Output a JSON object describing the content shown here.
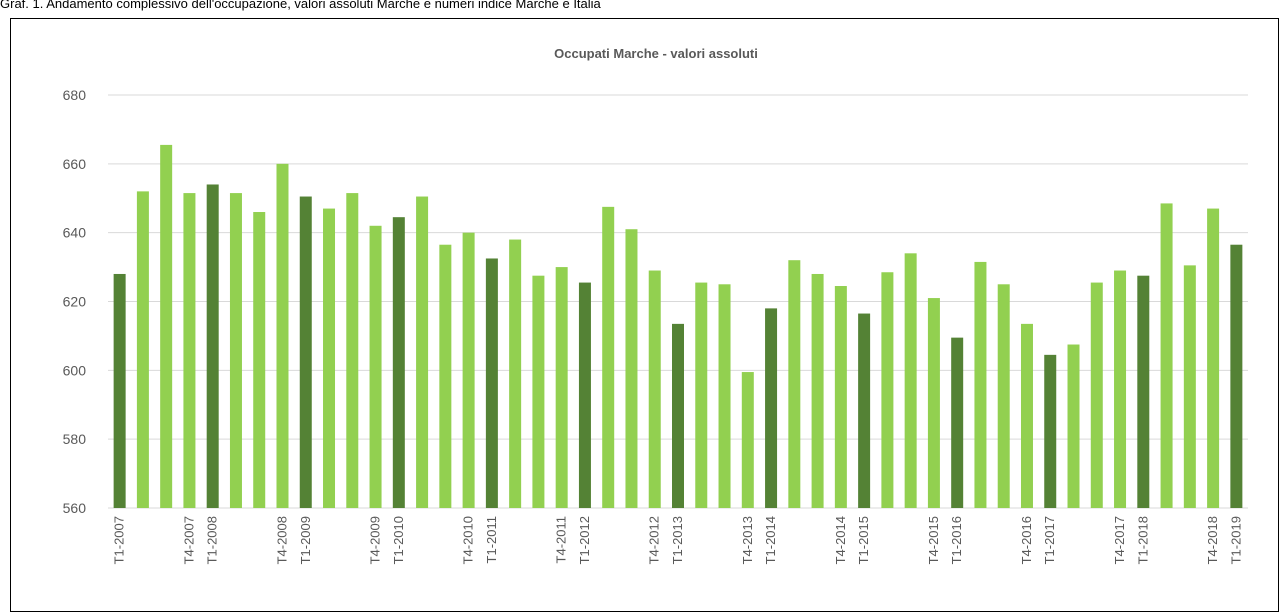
{
  "caption": "Graf. 1. Andamento complessivo dell'occupazione, valori assoluti Marche e numeri indice Marche e Italia",
  "chart_data": {
    "type": "bar",
    "title": "Occupati Marche - valori assoluti",
    "categories": [
      "T1-2007",
      null,
      null,
      "T4-2007",
      "T1-2008",
      null,
      null,
      "T4-2008",
      "T1-2009",
      null,
      null,
      "T4-2009",
      "T1-2010",
      null,
      null,
      "T4-2010",
      "T1-2011",
      null,
      null,
      "T4-2011",
      "T1-2012",
      null,
      null,
      "T4-2012",
      "T1-2013",
      null,
      null,
      "T4-2013",
      "T1-2014",
      null,
      null,
      "T4-2014",
      "T1-2015",
      null,
      null,
      "T4-2015",
      "T1-2016",
      null,
      null,
      "T4-2016",
      "T1-2017",
      null,
      null,
      "T4-2017",
      "T1-2018",
      null,
      null,
      "T4-2018",
      "T1-2019"
    ],
    "values": [
      628,
      652,
      665.5,
      651.5,
      654,
      651.5,
      646,
      660,
      650.5,
      647,
      651.5,
      642,
      644.5,
      650.5,
      636.5,
      640,
      632.5,
      638,
      627.5,
      630,
      625.5,
      647.5,
      641,
      629,
      613.5,
      625.5,
      625,
      599.5,
      618,
      632,
      628,
      624.5,
      616.5,
      628.5,
      634,
      621,
      609.5,
      631.5,
      625,
      613.5,
      604.5,
      607.5,
      625.5,
      629,
      627.5,
      648.5,
      630.5,
      647,
      636.5
    ],
    "colors": [
      "#548235",
      "#92d050",
      "#92d050",
      "#92d050",
      "#548235",
      "#92d050",
      "#92d050",
      "#92d050",
      "#548235",
      "#92d050",
      "#92d050",
      "#92d050",
      "#548235",
      "#92d050",
      "#92d050",
      "#92d050",
      "#548235",
      "#92d050",
      "#92d050",
      "#92d050",
      "#548235",
      "#92d050",
      "#92d050",
      "#92d050",
      "#548235",
      "#92d050",
      "#92d050",
      "#92d050",
      "#548235",
      "#92d050",
      "#92d050",
      "#92d050",
      "#548235",
      "#92d050",
      "#92d050",
      "#92d050",
      "#548235",
      "#92d050",
      "#92d050",
      "#92d050",
      "#548235",
      "#92d050",
      "#92d050",
      "#92d050",
      "#548235",
      "#92d050",
      "#92d050",
      "#92d050",
      "#548235"
    ],
    "ylim": [
      560,
      680
    ],
    "yticks": [
      560,
      580,
      600,
      620,
      640,
      660,
      680
    ],
    "grid": true
  }
}
